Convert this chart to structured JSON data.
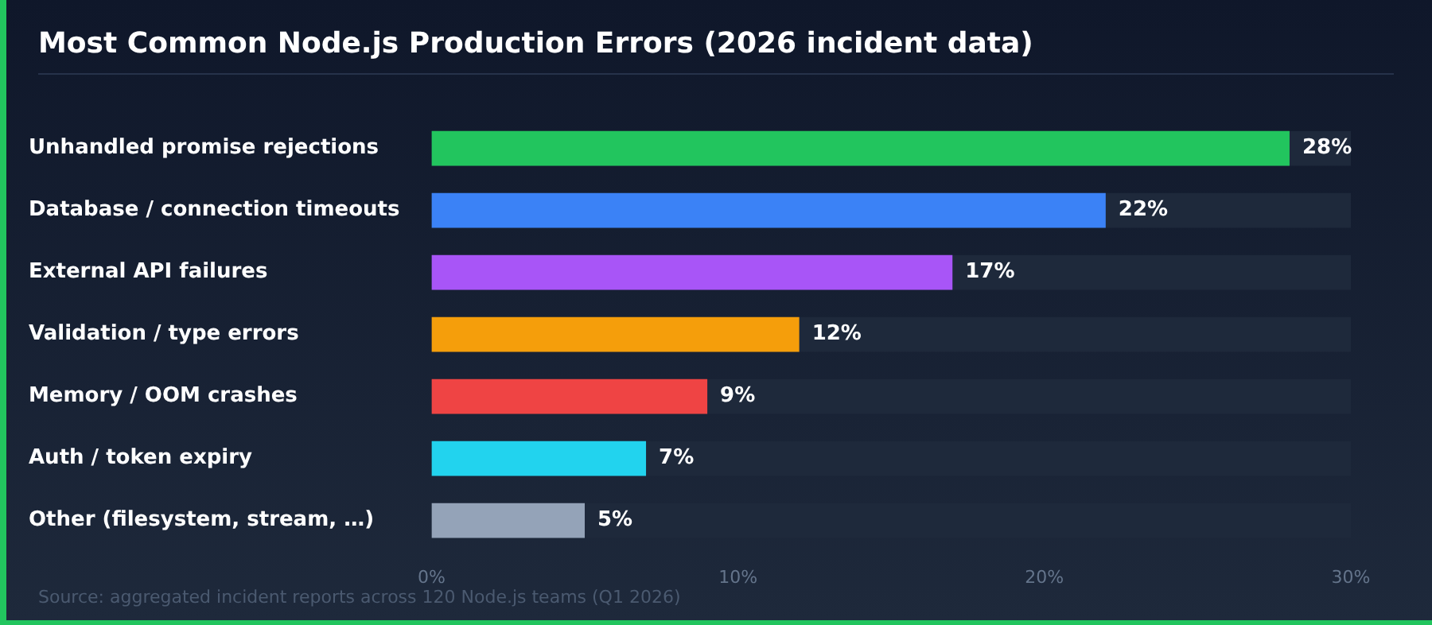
{
  "chart_data": {
    "type": "bar",
    "orientation": "horizontal",
    "title": "Most Common Node.js Production Errors (2026 incident data)",
    "categories": [
      "Unhandled promise rejections",
      "Database / connection timeouts",
      "External API failures",
      "Validation / type errors",
      "Memory / OOM crashes",
      "Auth / token expiry",
      "Other (filesystem, stream, …)"
    ],
    "values": [
      28,
      22,
      17,
      12,
      9,
      7,
      5
    ],
    "colors": [
      "#22c55e",
      "#3b82f6",
      "#a855f7",
      "#f59e0b",
      "#ef4444",
      "#22d3ee",
      "#94a3b8"
    ],
    "value_labels": [
      "28%",
      "22%",
      "17%",
      "12%",
      "9%",
      "7%",
      "5%"
    ],
    "xlim": [
      0,
      30
    ],
    "xticks": [
      {
        "value": 0,
        "label": "0%"
      },
      {
        "value": 10,
        "label": "10%"
      },
      {
        "value": 20,
        "label": "20%"
      },
      {
        "value": 30,
        "label": "30%"
      }
    ],
    "grid": false,
    "legend": false,
    "annotations": [
      "Source: aggregated incident reports across 120 Node.js teams (Q1 2026)"
    ]
  }
}
